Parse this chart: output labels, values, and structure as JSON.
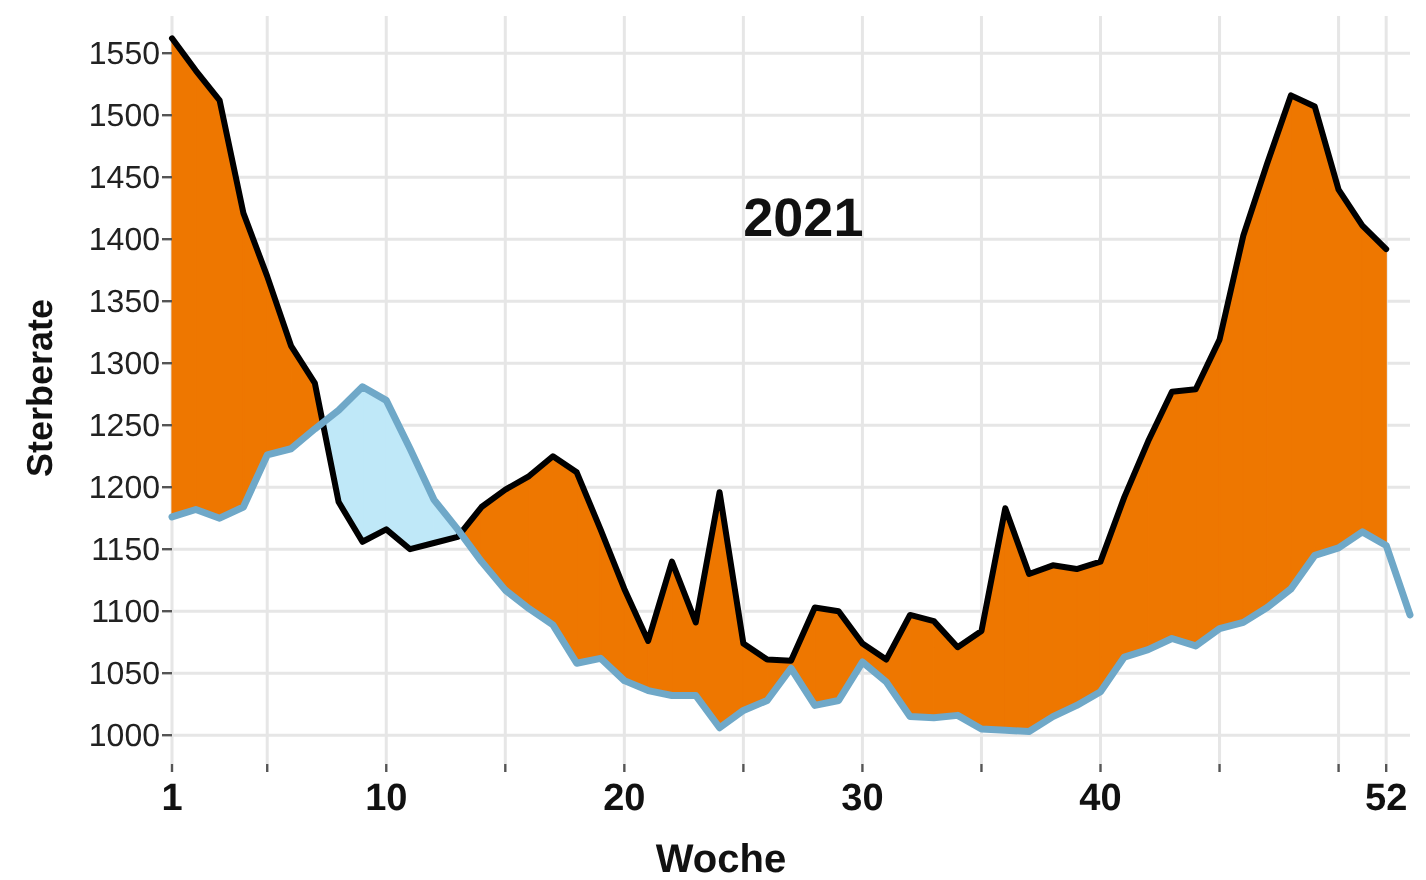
{
  "chart_data": {
    "type": "line",
    "xlabel": "Woche",
    "ylabel": "Sterberate",
    "annotations": [
      "2021"
    ],
    "xlim": [
      1,
      53
    ],
    "ylim": [
      980,
      1580
    ],
    "xticks": [
      1,
      {
        "value": 5,
        "label": null
      },
      10,
      {
        "value": 15,
        "label": null
      },
      20,
      {
        "value": 25,
        "label": null
      },
      30,
      {
        "value": 35,
        "label": null
      },
      40,
      {
        "value": 45,
        "label": null
      },
      {
        "value": 50,
        "label": null
      },
      52
    ],
    "yticks": [
      1000,
      1050,
      1100,
      1150,
      1200,
      1250,
      1300,
      1350,
      1400,
      1450,
      1500,
      1550
    ],
    "grid": true,
    "line_style": "solid",
    "colors": [
      "#ee7700",
      "#bfe8f8"
    ],
    "series": [
      {
        "color": "#000000",
        "x": [
          1,
          2,
          3,
          4,
          5,
          6,
          7,
          8,
          9,
          10,
          11,
          12,
          13,
          14,
          15,
          16,
          17,
          18,
          19,
          20,
          21,
          22,
          23,
          24,
          25,
          26,
          27,
          28,
          29,
          30,
          31,
          32,
          33,
          34,
          35,
          36,
          37,
          38,
          39,
          40,
          41,
          42,
          43,
          44,
          45,
          46,
          47,
          48,
          49,
          50,
          51,
          52
        ],
        "values": [
          1562,
          1536,
          1512,
          1421,
          1370,
          1314,
          1284,
          1188,
          1156,
          1166,
          1150,
          1155,
          1160,
          1184,
          1198,
          1209,
          1225,
          1212,
          1166,
          1118,
          1076,
          1140,
          1091,
          1196,
          1074,
          1061,
          1060,
          1103,
          1100,
          1074,
          1061,
          1097,
          1092,
          1071,
          1084,
          1183,
          1130,
          1137,
          1134,
          1140,
          1192,
          1237,
          1277,
          1279,
          1319,
          1403,
          1461,
          1516,
          1507,
          1440,
          1411,
          1392
        ]
      },
      {
        "color": "#6fa8c8",
        "x": [
          1,
          2,
          3,
          4,
          5,
          6,
          7,
          8,
          9,
          10,
          11,
          12,
          13,
          14,
          15,
          16,
          17,
          18,
          19,
          20,
          21,
          22,
          23,
          24,
          25,
          26,
          27,
          28,
          29,
          30,
          31,
          32,
          33,
          34,
          35,
          36,
          37,
          38,
          39,
          40,
          41,
          42,
          43,
          44,
          45,
          46,
          47,
          48,
          49,
          50,
          51,
          52,
          53
        ],
        "values": [
          1176,
          1182,
          1175,
          1184,
          1226,
          1231,
          1247,
          1262,
          1281,
          1270,
          1231,
          1190,
          1166,
          1140,
          1117,
          1102,
          1089,
          1058,
          1062,
          1044,
          1036,
          1032,
          1032,
          1006,
          1020,
          1028,
          1054,
          1024,
          1028,
          1059,
          1043,
          1015,
          1014,
          1016,
          1005,
          1004,
          1003,
          1015,
          1024,
          1035,
          1063,
          1069,
          1078,
          1072,
          1086,
          1091,
          1103,
          1118,
          1145,
          1151,
          1164,
          1153,
          1097
        ]
      }
    ]
  }
}
